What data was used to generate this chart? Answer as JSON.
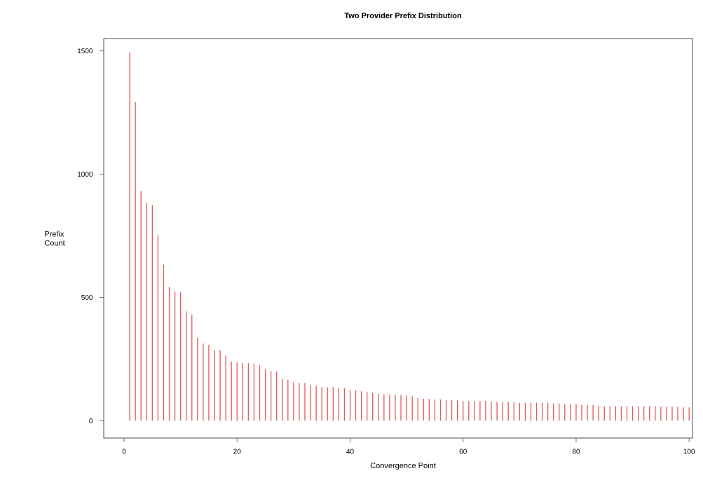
{
  "chart_data": {
    "type": "bar",
    "title": "Two Provider Prefix Distribution",
    "xlabel": "Convergence Point",
    "ylabel": "Prefix Count",
    "x": [
      1,
      2,
      3,
      4,
      5,
      6,
      7,
      8,
      9,
      10,
      11,
      12,
      13,
      14,
      15,
      16,
      17,
      18,
      19,
      20,
      21,
      22,
      23,
      24,
      25,
      26,
      27,
      28,
      29,
      30,
      31,
      32,
      33,
      34,
      35,
      36,
      37,
      38,
      39,
      40,
      41,
      42,
      43,
      44,
      45,
      46,
      47,
      48,
      49,
      50,
      51,
      52,
      53,
      54,
      55,
      56,
      57,
      58,
      59,
      60,
      61,
      62,
      63,
      64,
      65,
      66,
      67,
      68,
      69,
      70,
      71,
      72,
      73,
      74,
      75,
      76,
      77,
      78,
      79,
      80,
      81,
      82,
      83,
      84,
      85,
      86,
      87,
      88,
      89,
      90,
      91,
      92,
      93,
      94,
      95,
      96,
      97,
      98,
      99,
      100
    ],
    "values": [
      1494,
      1292,
      931,
      885,
      874,
      753,
      633,
      543,
      524,
      522,
      444,
      430,
      337,
      313,
      309,
      287,
      287,
      265,
      240,
      238,
      235,
      234,
      232,
      225,
      211,
      201,
      200,
      169,
      166,
      157,
      153,
      154,
      145,
      141,
      136,
      136,
      136,
      132,
      132,
      124,
      124,
      120,
      118,
      113,
      110,
      107,
      107,
      106,
      104,
      104,
      100,
      92,
      89,
      89,
      87,
      86,
      83,
      83,
      83,
      80,
      80,
      80,
      80,
      80,
      77,
      77,
      76,
      76,
      76,
      73,
      73,
      73,
      73,
      73,
      73,
      70,
      70,
      68,
      67,
      67,
      64,
      64,
      64,
      61,
      59,
      59,
      59,
      59,
      59,
      59,
      59,
      59,
      59,
      59,
      58,
      57,
      57,
      57,
      54,
      54
    ],
    "color": "#e05a5a",
    "xlim": [
      -3.6,
      100.6
    ],
    "ylim": [
      -70,
      1550
    ],
    "xticks": [
      0,
      20,
      40,
      60,
      80,
      100
    ],
    "yticks": [
      0,
      500,
      1000,
      1500
    ]
  }
}
